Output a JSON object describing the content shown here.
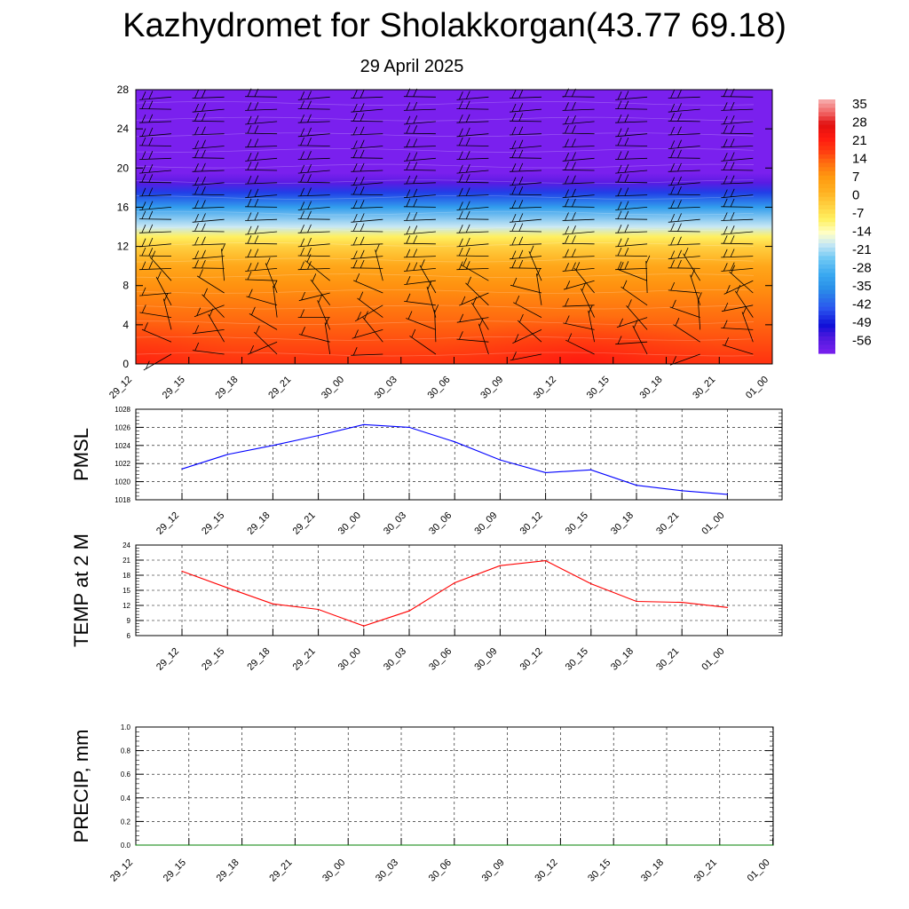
{
  "header": {
    "title": "Kazhydromet for Sholakkorgan(43.77 69.18)",
    "subtitle": "29 April 2025"
  },
  "colorbar": {
    "labels": [
      "35",
      "28",
      "21",
      "14",
      "7",
      "0",
      "-7",
      "-14",
      "-21",
      "-28",
      "-35",
      "-42",
      "-49",
      "-56"
    ]
  },
  "chart_data": [
    {
      "type": "heatmap",
      "name": "temperature-wind cross-section",
      "x_ticks": [
        "29_12",
        "29_15",
        "29_18",
        "29_21",
        "30_00",
        "30_03",
        "30_06",
        "30_09",
        "30_12",
        "30_15",
        "30_18",
        "30_21",
        "01_00"
      ],
      "y_ticks": [
        "0",
        "4",
        "8",
        "12",
        "16",
        "20",
        "24",
        "28"
      ],
      "ylim": [
        0,
        28
      ],
      "color_range": [
        -56,
        35
      ],
      "level_profile": [
        {
          "level": 0,
          "value": 18
        },
        {
          "level": 4,
          "value": 13
        },
        {
          "level": 8,
          "value": 8
        },
        {
          "level": 10,
          "value": 4
        },
        {
          "level": 12,
          "value": -3
        },
        {
          "level": 13,
          "value": -8
        },
        {
          "level": 14,
          "value": -17
        },
        {
          "level": 16,
          "value": -30
        },
        {
          "level": 17.5,
          "value": -42
        },
        {
          "level": 18.5,
          "value": -52
        },
        {
          "level": 19.5,
          "value": -56
        },
        {
          "level": 28,
          "value": -56
        }
      ]
    },
    {
      "type": "line",
      "ylabel": "PMSL",
      "categories": [
        "29_12",
        "29_15",
        "29_18",
        "29_21",
        "30_00",
        "30_03",
        "30_06",
        "30_09",
        "30_12",
        "30_15",
        "30_18",
        "30_21",
        "01_00"
      ],
      "series": [
        {
          "values": [
            1021.4,
            1023.0,
            1024.0,
            1025.1,
            1026.3,
            1026.0,
            1024.4,
            1022.4,
            1021.0,
            1021.3,
            1019.6,
            1019.0,
            1018.6
          ]
        }
      ],
      "color": "#0000ff",
      "y_ticks": [
        "1018",
        "1020",
        "1022",
        "1024",
        "1026",
        "1028"
      ],
      "ylim": [
        1018,
        1028
      ]
    },
    {
      "type": "line",
      "ylabel": "TEMP at 2 M",
      "categories": [
        "29_12",
        "29_15",
        "29_18",
        "29_21",
        "30_00",
        "30_03",
        "30_06",
        "30_09",
        "30_12",
        "30_15",
        "30_18",
        "30_21",
        "01_00"
      ],
      "series": [
        {
          "values": [
            18.8,
            15.5,
            12.3,
            11.2,
            7.9,
            10.9,
            16.5,
            19.9,
            20.9,
            16.3,
            12.8,
            12.6,
            11.6
          ]
        }
      ],
      "color": "#ff0000",
      "y_ticks": [
        "6",
        "9",
        "12",
        "15",
        "18",
        "21",
        "24"
      ],
      "ylim": [
        6,
        24
      ]
    },
    {
      "type": "line",
      "ylabel": "PRECIP, mm",
      "categories": [
        "29_12",
        "29_15",
        "29_18",
        "29_21",
        "30_00",
        "30_03",
        "30_06",
        "30_09",
        "30_12",
        "30_15",
        "30_18",
        "30_21",
        "01_00"
      ],
      "series": [
        {
          "values": [
            0,
            0,
            0,
            0,
            0,
            0,
            0,
            0,
            0,
            0,
            0,
            0,
            0
          ]
        }
      ],
      "color": "#008000",
      "y_ticks": [
        "0.0",
        "0.2",
        "0.4",
        "0.6",
        "0.8",
        "1.0"
      ],
      "ylim": [
        0,
        1
      ]
    }
  ]
}
